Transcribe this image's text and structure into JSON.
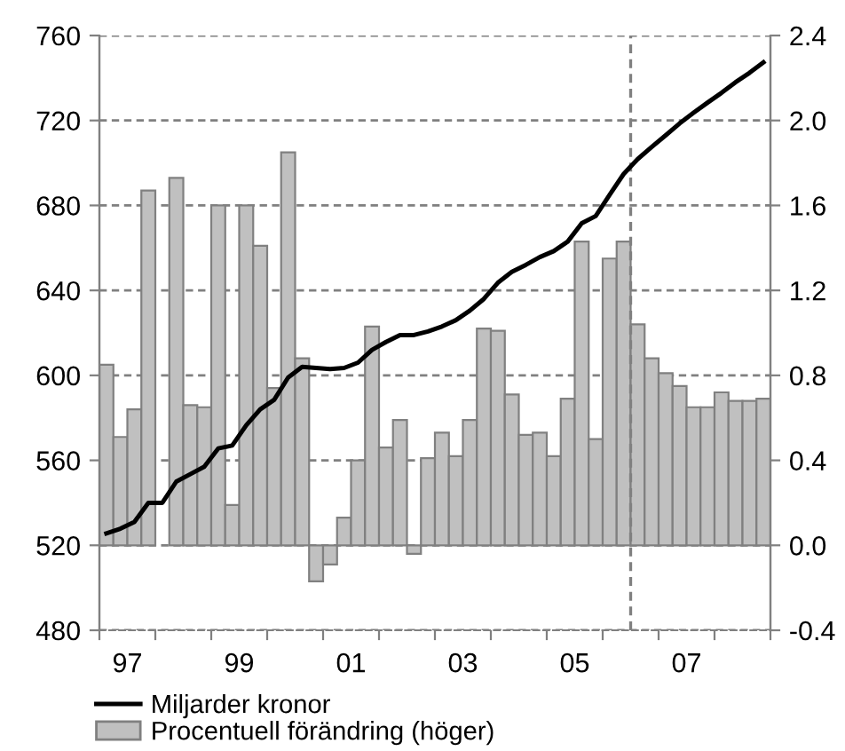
{
  "chart_data": {
    "type": "bar",
    "x": [
      1996.625,
      1996.875,
      1997.125,
      1997.375,
      1997.625,
      1997.875,
      1998.125,
      1998.375,
      1998.625,
      1998.875,
      1999.125,
      1999.375,
      1999.625,
      1999.875,
      2000.125,
      2000.375,
      2000.625,
      2000.875,
      2001.125,
      2001.375,
      2001.625,
      2001.875,
      2002.125,
      2002.375,
      2002.625,
      2002.875,
      2003.125,
      2003.375,
      2003.625,
      2003.875,
      2004.125,
      2004.375,
      2004.625,
      2004.875,
      2005.125,
      2005.375,
      2005.625,
      2005.875,
      2006.125,
      2006.375,
      2006.625,
      2006.875,
      2007.125,
      2007.375,
      2007.625,
      2007.875,
      2008.125,
      2008.375
    ],
    "series": [
      {
        "name": "Miljarder kronor",
        "type": "line",
        "axis": "y",
        "color": "#000000",
        "values": [
          525.6,
          527.8,
          531,
          540,
          540,
          550,
          553.5,
          557,
          565.6,
          567,
          576.5,
          584,
          588.5,
          599,
          604,
          603.5,
          603,
          603.5,
          606,
          612,
          615.7,
          619,
          619,
          620.7,
          623,
          626,
          630.5,
          636,
          643.6,
          648.7,
          652,
          655.7,
          658.5,
          663,
          671.6,
          675,
          685,
          694.8,
          701.8,
          707.5,
          713,
          718.6,
          723.6,
          728.4,
          733,
          738,
          742.4,
          747.4
        ]
      },
      {
        "name": "Procentuell förändring (höger)",
        "axis": "y2",
        "color": "#c0c0c0",
        "values": [
          0.85,
          0.51,
          0.64,
          1.67,
          null,
          1.73,
          0.66,
          0.65,
          1.6,
          0.19,
          1.6,
          1.41,
          0.74,
          1.85,
          0.88,
          -0.17,
          -0.09,
          0.13,
          0.4,
          1.03,
          0.46,
          0.59,
          -0.04,
          0.41,
          0.53,
          0.42,
          0.59,
          1.02,
          1.01,
          0.71,
          0.52,
          0.53,
          0.42,
          0.69,
          1.43,
          0.5,
          1.35,
          1.43,
          1.04,
          0.88,
          0.81,
          0.75,
          0.65,
          0.65,
          0.72,
          0.68,
          0.68,
          0.69
        ]
      }
    ],
    "xlim": [
      1996.5,
      2008.5
    ],
    "xticks": [
      {
        "value": 1996.5,
        "label": null
      },
      {
        "value": 1997,
        "label": "97"
      },
      {
        "value": 1997.5,
        "label": null
      },
      {
        "value": 1998.5,
        "label": null
      },
      {
        "value": 1999,
        "label": "99"
      },
      {
        "value": 1999.5,
        "label": null
      },
      {
        "value": 2000.5,
        "label": null
      },
      {
        "value": 2001,
        "label": "01"
      },
      {
        "value": 2001.5,
        "label": null
      },
      {
        "value": 2002.5,
        "label": null
      },
      {
        "value": 2003,
        "label": "03"
      },
      {
        "value": 2003.5,
        "label": null
      },
      {
        "value": 2004.5,
        "label": null
      },
      {
        "value": 2005,
        "label": "05"
      },
      {
        "value": 2005.5,
        "label": null
      },
      {
        "value": 2006.5,
        "label": null
      },
      {
        "value": 2007,
        "label": "07"
      },
      {
        "value": 2007.5,
        "label": null
      },
      {
        "value": 2008.5,
        "label": null
      }
    ],
    "ylim": [
      480,
      760
    ],
    "yticks": [
      480,
      520,
      560,
      600,
      640,
      680,
      720,
      760
    ],
    "y2lim": [
      -0.4,
      2.4
    ],
    "y2ticks": [
      {
        "value": -0.4,
        "label": "-0.4"
      },
      {
        "value": 0,
        "label": "0.0"
      },
      {
        "value": 0.4,
        "label": "0.4"
      },
      {
        "value": 0.8,
        "label": "0.8"
      },
      {
        "value": 1.2,
        "label": "1.2"
      },
      {
        "value": 1.6,
        "label": "1.6"
      },
      {
        "value": 2.0,
        "label": "2.0"
      },
      {
        "value": 2.4,
        "label": "2.4"
      }
    ],
    "ref_lines": [
      {
        "axis": "x",
        "value": 2006,
        "label": null,
        "color": "#808080",
        "line_style": "dashed"
      }
    ],
    "grid": "y",
    "legend": "bottom"
  }
}
